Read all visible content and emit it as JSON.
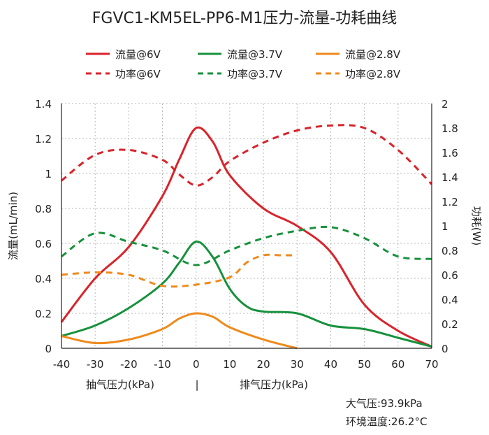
{
  "colors": {
    "red": "#d9232a",
    "green": "#17913c",
    "orange": "#ee8a1c",
    "grid": "#b8b8b8"
  },
  "chart_data": {
    "type": "line",
    "title": "FGVC1-KM5EL-PP6-M1压力-流量-功耗曲线",
    "x": [
      -40,
      -30,
      -20,
      -10,
      0,
      10,
      20,
      30,
      40,
      50,
      60,
      70
    ],
    "xticks": [
      "-40",
      "-30",
      "-20",
      "-10",
      "0",
      "10",
      "20",
      "30",
      "40",
      "50",
      "60",
      "70"
    ],
    "xlim": [
      -40,
      70
    ],
    "ylabel": "流量(mL/min)",
    "ylim": [
      0,
      1.4
    ],
    "yticks": [
      "0",
      "0.2",
      "0.4",
      "0.6",
      "0.8",
      "1",
      "1.2",
      "1.4"
    ],
    "y2label": "功耗(W)",
    "y2lim": [
      0,
      2
    ],
    "y2ticks": [
      "0",
      "0.2",
      "0.4",
      "0.6",
      "0.8",
      "1",
      "1.2",
      "1.4",
      "1.6",
      "1.8",
      "2"
    ],
    "xlabel_left": "抽气压力(kPa)",
    "xlabel_sep": "|",
    "xlabel_right": "排气压力(kPa)",
    "grid": true,
    "legend_position": "top",
    "series": [
      {
        "name": "流量@6V",
        "axis": "left",
        "style": "solid",
        "color": "#d9232a",
        "x": [
          -40,
          -30,
          -20,
          -10,
          -5,
          0,
          5,
          10,
          20,
          30,
          40,
          50,
          60,
          70
        ],
        "y": [
          0.15,
          0.4,
          0.58,
          0.87,
          1.08,
          1.26,
          1.18,
          0.99,
          0.8,
          0.7,
          0.55,
          0.25,
          0.1,
          0.01
        ]
      },
      {
        "name": "流量@3.7V",
        "axis": "left",
        "style": "solid",
        "color": "#17913c",
        "x": [
          -40,
          -30,
          -20,
          -10,
          -5,
          0,
          5,
          10,
          15,
          20,
          30,
          40,
          50,
          60,
          70
        ],
        "y": [
          0.07,
          0.13,
          0.23,
          0.37,
          0.49,
          0.61,
          0.52,
          0.34,
          0.24,
          0.21,
          0.2,
          0.13,
          0.11,
          0.06,
          0.01
        ]
      },
      {
        "name": "流量@2.8V",
        "axis": "left",
        "style": "solid",
        "color": "#ee8a1c",
        "x": [
          -40,
          -30,
          -20,
          -10,
          -5,
          0,
          5,
          10,
          20,
          30
        ],
        "y": [
          0.07,
          0.03,
          0.05,
          0.11,
          0.17,
          0.2,
          0.18,
          0.12,
          0.05,
          0.0
        ]
      },
      {
        "name": "功率@6V",
        "axis": "right",
        "style": "dashed",
        "color": "#d9232a",
        "x": [
          -40,
          -30,
          -20,
          -10,
          -5,
          0,
          5,
          10,
          20,
          30,
          40,
          50,
          60,
          70
        ],
        "y": [
          1.37,
          1.58,
          1.62,
          1.54,
          1.42,
          1.33,
          1.4,
          1.53,
          1.68,
          1.78,
          1.82,
          1.8,
          1.62,
          1.34
        ]
      },
      {
        "name": "功率@3.7V",
        "axis": "right",
        "style": "dashed",
        "color": "#17913c",
        "x": [
          -40,
          -30,
          -20,
          -10,
          0,
          10,
          20,
          30,
          40,
          50,
          60,
          70
        ],
        "y": [
          0.75,
          0.94,
          0.87,
          0.8,
          0.68,
          0.8,
          0.9,
          0.96,
          0.99,
          0.9,
          0.75,
          0.73
        ]
      },
      {
        "name": "功率@2.8V",
        "axis": "right",
        "style": "dashed",
        "color": "#ee8a1c",
        "x": [
          -40,
          -30,
          -20,
          -10,
          0,
          10,
          15,
          20,
          25,
          30
        ],
        "y": [
          0.6,
          0.62,
          0.6,
          0.51,
          0.52,
          0.58,
          0.7,
          0.76,
          0.76,
          0.76
        ]
      }
    ],
    "annotations": [
      "大气压:93.9kPa",
      "环境温度:26.2°C"
    ]
  }
}
